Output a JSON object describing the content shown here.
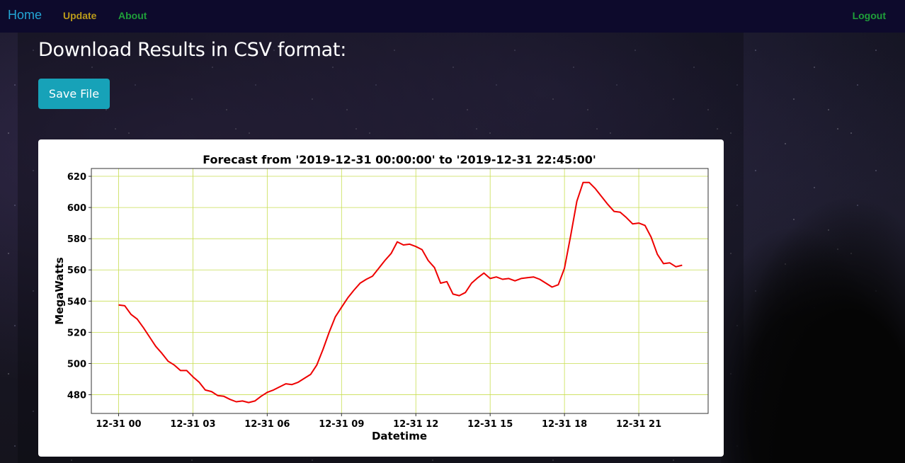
{
  "nav": {
    "brand": "Home",
    "links": [
      "Update",
      "About"
    ],
    "logout": "Logout"
  },
  "main": {
    "heading": "Download Results in CSV format:",
    "save_button": "Save File"
  },
  "colors": {
    "navbar_bg": "#0d0a2c",
    "brand": "#23a6d5",
    "update_link": "#b99a1a",
    "about_link": "#1f9f3a",
    "button": "#17a2b8",
    "line": "#ee0000",
    "grid": "#c8de50"
  },
  "chart_data": {
    "type": "line",
    "title": "Forecast from '2019-12-31 00:00:00' to '2019-12-31 22:45:00'",
    "xlabel": "Datetime",
    "ylabel": "MegaWatts",
    "xlim_hours": [
      -1.1,
      23.8
    ],
    "ylim": [
      468,
      625
    ],
    "grid": true,
    "x_ticks": [
      {
        "hour": 0,
        "label": "12-31 00"
      },
      {
        "hour": 3,
        "label": "12-31 03"
      },
      {
        "hour": 6,
        "label": "12-31 06"
      },
      {
        "hour": 9,
        "label": "12-31 09"
      },
      {
        "hour": 12,
        "label": "12-31 12"
      },
      {
        "hour": 15,
        "label": "12-31 15"
      },
      {
        "hour": 18,
        "label": "12-31 18"
      },
      {
        "hour": 21,
        "label": "12-31 21"
      }
    ],
    "y_ticks": [
      480,
      500,
      520,
      540,
      560,
      580,
      600,
      620
    ],
    "series": [
      {
        "color": "#ee0000",
        "x_hours": [
          0,
          0.25,
          0.5,
          0.75,
          1.0,
          1.25,
          1.5,
          1.75,
          2.0,
          2.25,
          2.5,
          2.75,
          3.0,
          3.25,
          3.5,
          3.75,
          4.0,
          4.25,
          4.5,
          4.75,
          5.0,
          5.25,
          5.5,
          5.75,
          6.0,
          6.25,
          6.5,
          6.75,
          7.0,
          7.25,
          7.5,
          7.75,
          8.0,
          8.25,
          8.5,
          8.75,
          9.0,
          9.25,
          9.5,
          9.75,
          10.0,
          10.25,
          10.5,
          10.75,
          11.0,
          11.25,
          11.5,
          11.75,
          12.0,
          12.25,
          12.5,
          12.75,
          13.0,
          13.25,
          13.5,
          13.75,
          14.0,
          14.25,
          14.5,
          14.75,
          15.0,
          15.25,
          15.5,
          15.75,
          16.0,
          16.25,
          16.5,
          16.75,
          17.0,
          17.25,
          17.5,
          17.75,
          18.0,
          18.25,
          18.5,
          18.75,
          19.0,
          19.25,
          19.5,
          19.75,
          20.0,
          20.25,
          20.5,
          20.75,
          21.0,
          21.25,
          21.5,
          21.75,
          22.0,
          22.25,
          22.5,
          22.75
        ],
        "values": [
          537.5,
          537,
          531.5,
          528.5,
          523,
          517,
          511,
          506.5,
          501.5,
          499,
          495.5,
          495.5,
          491.5,
          488,
          483,
          482,
          479.5,
          479,
          477,
          475.5,
          476,
          475,
          476,
          479,
          481.5,
          483,
          485,
          487,
          486.5,
          488,
          490.5,
          493,
          499,
          509,
          520,
          530,
          536,
          542,
          547,
          551.5,
          554,
          556,
          561,
          566,
          570.5,
          578,
          576,
          576.5,
          575,
          573,
          566,
          561.5,
          551.5,
          552.5,
          544.5,
          543.5,
          545.5,
          551.5,
          555,
          558,
          554.5,
          555.5,
          554,
          554.5,
          553,
          554.5,
          555,
          555.5,
          554,
          551.5,
          549,
          550.5,
          561,
          582,
          604,
          616,
          616,
          612,
          607,
          602,
          597.5,
          597,
          593.5,
          589.5,
          590,
          588.5,
          581,
          570,
          564,
          564.5,
          562,
          563
        ]
      }
    ]
  }
}
